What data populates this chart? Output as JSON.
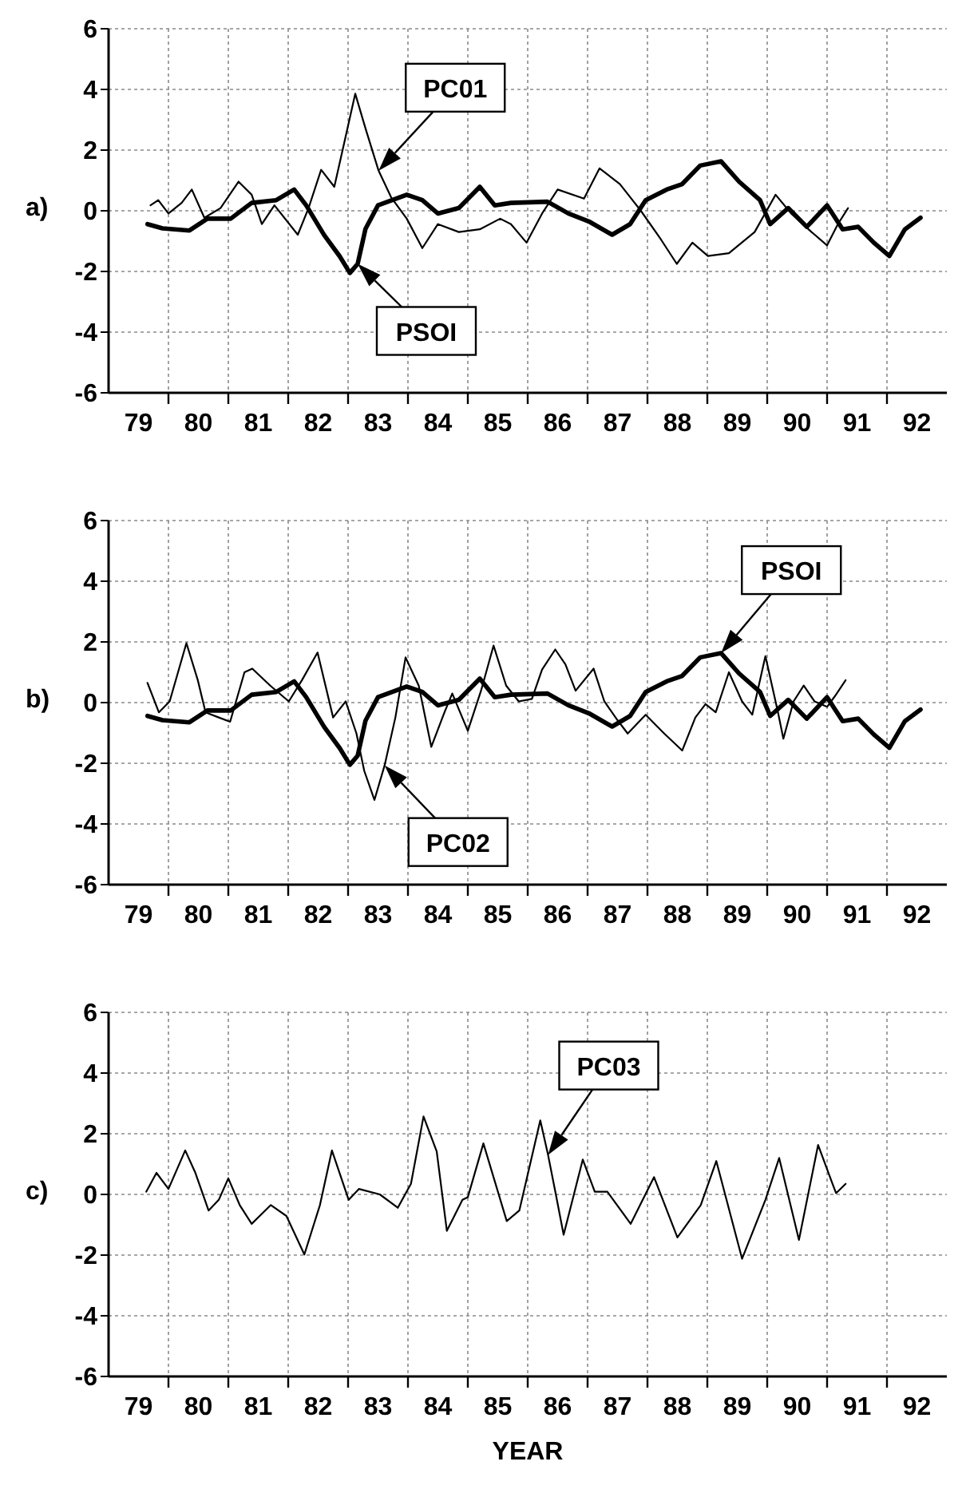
{
  "chart_data": [
    {
      "type": "line",
      "title": "a)",
      "xlim": [
        79,
        93
      ],
      "ylim": [
        -6,
        6
      ],
      "yticks": [
        -6,
        -4,
        -2,
        0,
        2,
        4,
        6
      ],
      "grid": true,
      "xticks": [
        {
          "value": 80,
          "label": null
        },
        {
          "value": 81,
          "label": null
        },
        {
          "value": 82,
          "label": null
        },
        {
          "value": 83,
          "label": null
        },
        {
          "value": 84,
          "label": null
        },
        {
          "value": 85,
          "label": null
        },
        {
          "value": 86,
          "label": null
        },
        {
          "value": 87,
          "label": null
        },
        {
          "value": 88,
          "label": null
        },
        {
          "value": 89,
          "label": null
        },
        {
          "value": 90,
          "label": null
        },
        {
          "value": 91,
          "label": null
        },
        {
          "value": 92,
          "label": null
        },
        {
          "value": 79.5,
          "label": "79"
        },
        {
          "value": 80.5,
          "label": "80"
        },
        {
          "value": 81.5,
          "label": "81"
        },
        {
          "value": 82.5,
          "label": "82"
        },
        {
          "value": 83.5,
          "label": "83"
        },
        {
          "value": 84.5,
          "label": "84"
        },
        {
          "value": 85.5,
          "label": "85"
        },
        {
          "value": 86.5,
          "label": "86"
        },
        {
          "value": 87.5,
          "label": "87"
        },
        {
          "value": 88.5,
          "label": "88"
        },
        {
          "value": 89.5,
          "label": "89"
        },
        {
          "value": 90.5,
          "label": "90"
        },
        {
          "value": 91.5,
          "label": "91"
        },
        {
          "value": 92.5,
          "label": "92"
        }
      ],
      "series": [
        {
          "name": "PC01",
          "color": "#000000",
          "x": [
            79.7,
            79.83,
            80,
            80.22,
            80.39,
            80.6,
            80.87,
            81.17,
            81.39,
            81.56,
            81.77,
            82.16,
            82.34,
            82.55,
            82.77,
            82.99,
            83.12,
            83.29,
            83.51,
            83.72,
            83.98,
            84.24,
            84.5,
            84.85,
            85.2,
            85.54,
            85.72,
            85.98,
            86.24,
            86.5,
            86.94,
            87.2,
            87.54,
            87.89,
            88.23,
            88.49,
            88.75,
            89.01,
            89.36,
            89.79,
            90.14,
            90.4,
            90.74,
            91.0,
            91.18,
            91.35
          ],
          "values": [
            0.18,
            0.35,
            -0.09,
            0.26,
            0.7,
            -0.23,
            0.09,
            0.96,
            0.53,
            -0.44,
            0.18,
            -0.79,
            0.09,
            1.35,
            0.79,
            2.72,
            3.86,
            2.72,
            1.32,
            0.44,
            -0.26,
            -1.23,
            -0.44,
            -0.7,
            -0.61,
            -0.26,
            -0.44,
            -1.05,
            -0.09,
            0.7,
            0.4,
            1.4,
            0.88,
            0,
            -0.96,
            -1.75,
            -1.05,
            -1.49,
            -1.4,
            -0.7,
            0.53,
            -0.09,
            -0.7,
            -1.14,
            -0.44,
            0.09
          ]
        },
        {
          "name": "PSOI",
          "color": "#000000",
          "x": [
            79.65,
            79.9,
            80.35,
            80.65,
            81.04,
            81.39,
            81.8,
            82.1,
            82.3,
            82.6,
            82.86,
            83.03,
            83.16,
            83.29,
            83.5,
            83.98,
            84.24,
            84.5,
            84.85,
            85.2,
            85.45,
            85.72,
            86.33,
            86.68,
            87.02,
            87.41,
            87.71,
            87.97,
            88.32,
            88.58,
            88.88,
            89.23,
            89.53,
            89.88,
            90.05,
            90.35,
            90.66,
            91.0,
            91.26,
            91.52,
            91.78,
            92.04,
            92.3,
            92.56
          ],
          "values": [
            -0.44,
            -0.58,
            -0.65,
            -0.26,
            -0.26,
            0.26,
            0.35,
            0.7,
            0.18,
            -0.8,
            -1.5,
            -2.05,
            -1.75,
            -0.6,
            0.18,
            0.53,
            0.35,
            -0.09,
            0.09,
            0.79,
            0.18,
            0.26,
            0.3,
            -0.09,
            -0.35,
            -0.79,
            -0.44,
            0.35,
            0.7,
            0.88,
            1.49,
            1.63,
            0.96,
            0.35,
            -0.44,
            0.09,
            -0.53,
            0.18,
            -0.61,
            -0.53,
            -1.05,
            -1.49,
            -0.61,
            -0.23
          ]
        }
      ]
    },
    {
      "type": "line",
      "title": "b)",
      "xlim": [
        79,
        93
      ],
      "ylim": [
        -6,
        6
      ],
      "yticks": [
        -6,
        -4,
        -2,
        0,
        2,
        4,
        6
      ],
      "grid": true,
      "xticks": [
        {
          "value": 80,
          "label": null
        },
        {
          "value": 81,
          "label": null
        },
        {
          "value": 82,
          "label": null
        },
        {
          "value": 83,
          "label": null
        },
        {
          "value": 84,
          "label": null
        },
        {
          "value": 85,
          "label": null
        },
        {
          "value": 86,
          "label": null
        },
        {
          "value": 87,
          "label": null
        },
        {
          "value": 88,
          "label": null
        },
        {
          "value": 89,
          "label": null
        },
        {
          "value": 90,
          "label": null
        },
        {
          "value": 91,
          "label": null
        },
        {
          "value": 92,
          "label": null
        },
        {
          "value": 79.5,
          "label": "79"
        },
        {
          "value": 80.5,
          "label": "80"
        },
        {
          "value": 81.5,
          "label": "81"
        },
        {
          "value": 82.5,
          "label": "82"
        },
        {
          "value": 83.5,
          "label": "83"
        },
        {
          "value": 84.5,
          "label": "84"
        },
        {
          "value": 85.5,
          "label": "85"
        },
        {
          "value": 86.5,
          "label": "86"
        },
        {
          "value": 87.5,
          "label": "87"
        },
        {
          "value": 88.5,
          "label": "88"
        },
        {
          "value": 89.5,
          "label": "89"
        },
        {
          "value": 90.5,
          "label": "90"
        },
        {
          "value": 91.5,
          "label": "91"
        },
        {
          "value": 92.5,
          "label": "92"
        }
      ],
      "series": [
        {
          "name": "PC02",
          "color": "#000000",
          "x": [
            79.65,
            79.84,
            80.02,
            80.3,
            80.49,
            80.62,
            80.84,
            81.03,
            81.27,
            81.4,
            81.7,
            82.01,
            82.23,
            82.49,
            82.75,
            82.96,
            83.14,
            83.27,
            83.44,
            83.61,
            83.79,
            83.96,
            84.18,
            84.39,
            84.61,
            84.74,
            85.0,
            85.22,
            85.43,
            85.64,
            85.85,
            86.07,
            86.24,
            86.46,
            86.63,
            86.8,
            87.1,
            87.28,
            87.5,
            87.67,
            87.97,
            88.28,
            88.58,
            88.8,
            88.97,
            89.14,
            89.36,
            89.58,
            89.75,
            89.97,
            90.18,
            90.27,
            90.44,
            90.61,
            90.79,
            91.0,
            91.13,
            91.31
          ],
          "values": [
            0.65,
            -0.32,
            0.04,
            1.96,
            0.74,
            -0.32,
            -0.49,
            -0.63,
            1.0,
            1.12,
            0.56,
            0.04,
            0.74,
            1.65,
            -0.49,
            0.04,
            -1.02,
            -2.25,
            -3.21,
            -2.07,
            -0.49,
            1.49,
            0.56,
            -1.46,
            -0.32,
            0.3,
            -0.93,
            0.39,
            1.88,
            0.56,
            0.04,
            0.12,
            1.09,
            1.75,
            1.26,
            0.39,
            1.12,
            0.04,
            -0.58,
            -1.02,
            -0.4,
            -1.02,
            -1.58,
            -0.49,
            -0.05,
            -0.32,
            1.0,
            0.04,
            -0.4,
            1.53,
            -0.32,
            -1.19,
            0.04,
            0.56,
            0.04,
            -0.14,
            0.21,
            0.74
          ]
        },
        {
          "name": "PSOI",
          "color": "#000000",
          "x": [
            79.65,
            79.9,
            80.35,
            80.65,
            81.04,
            81.39,
            81.8,
            82.1,
            82.3,
            82.6,
            82.86,
            83.03,
            83.16,
            83.29,
            83.5,
            83.98,
            84.24,
            84.5,
            84.85,
            85.2,
            85.45,
            85.72,
            86.33,
            86.68,
            87.02,
            87.41,
            87.71,
            87.97,
            88.32,
            88.58,
            88.88,
            89.23,
            89.53,
            89.88,
            90.05,
            90.35,
            90.66,
            91.0,
            91.26,
            91.52,
            91.78,
            92.04,
            92.3,
            92.56
          ],
          "values": [
            -0.44,
            -0.58,
            -0.65,
            -0.26,
            -0.26,
            0.26,
            0.35,
            0.7,
            0.18,
            -0.8,
            -1.5,
            -2.05,
            -1.75,
            -0.6,
            0.18,
            0.53,
            0.35,
            -0.09,
            0.09,
            0.79,
            0.18,
            0.26,
            0.3,
            -0.09,
            -0.35,
            -0.79,
            -0.44,
            0.35,
            0.7,
            0.88,
            1.49,
            1.63,
            0.96,
            0.35,
            -0.44,
            0.09,
            -0.53,
            0.18,
            -0.61,
            -0.53,
            -1.05,
            -1.49,
            -0.61,
            -0.23
          ]
        }
      ]
    },
    {
      "type": "line",
      "title": "c)",
      "xlabel": "YEAR",
      "xlim": [
        79,
        93
      ],
      "ylim": [
        -6,
        6
      ],
      "yticks": [
        -6,
        -4,
        -2,
        0,
        2,
        4,
        6
      ],
      "grid": true,
      "xticks": [
        {
          "value": 80,
          "label": null
        },
        {
          "value": 81,
          "label": null
        },
        {
          "value": 82,
          "label": null
        },
        {
          "value": 83,
          "label": null
        },
        {
          "value": 84,
          "label": null
        },
        {
          "value": 85,
          "label": null
        },
        {
          "value": 86,
          "label": null
        },
        {
          "value": 87,
          "label": null
        },
        {
          "value": 88,
          "label": null
        },
        {
          "value": 89,
          "label": null
        },
        {
          "value": 90,
          "label": null
        },
        {
          "value": 91,
          "label": null
        },
        {
          "value": 92,
          "label": null
        },
        {
          "value": 79.5,
          "label": "79"
        },
        {
          "value": 80.5,
          "label": "80"
        },
        {
          "value": 81.5,
          "label": "81"
        },
        {
          "value": 82.5,
          "label": "82"
        },
        {
          "value": 83.5,
          "label": "83"
        },
        {
          "value": 84.5,
          "label": "84"
        },
        {
          "value": 85.5,
          "label": "85"
        },
        {
          "value": 86.5,
          "label": "86"
        },
        {
          "value": 87.5,
          "label": "87"
        },
        {
          "value": 88.5,
          "label": "88"
        },
        {
          "value": 89.5,
          "label": "89"
        },
        {
          "value": 90.5,
          "label": "90"
        },
        {
          "value": 91.5,
          "label": "91"
        },
        {
          "value": 92.5,
          "label": "92"
        }
      ],
      "series": [
        {
          "name": "PC03",
          "color": "#000000",
          "x": [
            79.63,
            79.8,
            80,
            80.28,
            80.45,
            80.67,
            80.84,
            81,
            81.19,
            81.39,
            81.71,
            81.97,
            82.27,
            82.53,
            82.73,
            83.01,
            83.18,
            83.53,
            83.83,
            84.05,
            84.26,
            84.48,
            84.65,
            84.91,
            85,
            85.26,
            85.65,
            85.86,
            86.21,
            86.34,
            86.47,
            86.6,
            86.92,
            87.12,
            87.33,
            87.72,
            88.11,
            88.5,
            88.89,
            89.15,
            89.58,
            89.97,
            90.2,
            90.53,
            90.85,
            91.09,
            91.15,
            91.31
          ],
          "values": [
            0.09,
            0.71,
            0.18,
            1.45,
            0.71,
            -0.53,
            -0.18,
            0.53,
            -0.35,
            -0.97,
            -0.35,
            -0.71,
            -1.98,
            -0.35,
            1.45,
            -0.18,
            0.18,
            0,
            -0.44,
            0.35,
            2.57,
            1.42,
            -1.2,
            -0.18,
            -0.09,
            1.68,
            -0.88,
            -0.53,
            2.44,
            1.3,
            0,
            -1.33,
            1.15,
            0.09,
            0.09,
            -0.97,
            0.57,
            -1.42,
            -0.35,
            1.1,
            -2.12,
            -0.18,
            1.2,
            -1.5,
            1.63,
            0.35,
            0.04,
            0.35
          ]
        }
      ]
    }
  ]
}
